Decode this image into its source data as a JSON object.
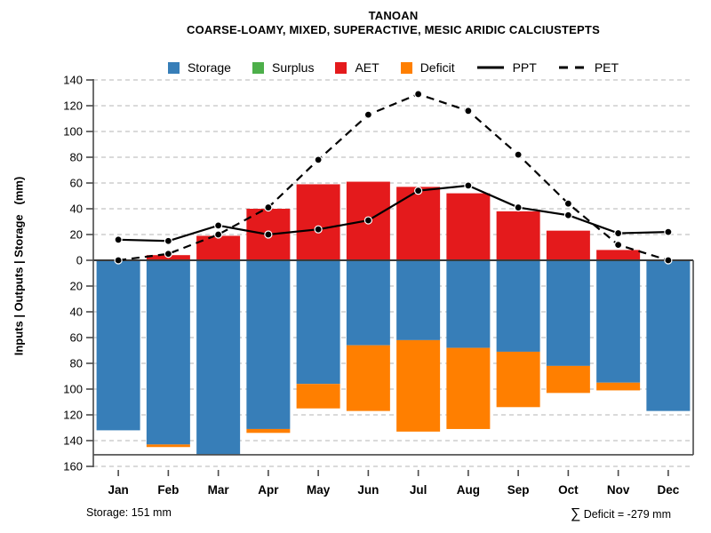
{
  "chart_data": {
    "type": "bar",
    "title": "TANOAN",
    "subtitle": "COARSE-LOAMY, MIXED, SUPERACTIVE, MESIC ARIDIC CALCIUSTEPTS",
    "categories": [
      "Jan",
      "Feb",
      "Mar",
      "Apr",
      "May",
      "Jun",
      "Jul",
      "Aug",
      "Sep",
      "Oct",
      "Nov",
      "Dec"
    ],
    "ylabel": "Inputs | Outputs | Storage   (mm)",
    "axis": {
      "up_max": 140,
      "down_max": 160,
      "tick_step": 20,
      "frame_bottom_value": 151,
      "grid": true,
      "grid_style": "dashed"
    },
    "series": [
      {
        "name": "Storage",
        "kind": "bar",
        "direction": "down",
        "color": "#377EB8",
        "values": [
          132,
          143,
          151,
          131,
          96,
          66,
          62,
          68,
          71,
          82,
          95,
          117
        ]
      },
      {
        "name": "Surplus",
        "kind": "bar",
        "direction": "up",
        "color": "#4DAF4A",
        "values": [
          0,
          0,
          0,
          0,
          0,
          0,
          0,
          0,
          0,
          0,
          0,
          0
        ]
      },
      {
        "name": "AET",
        "kind": "bar",
        "direction": "up",
        "color": "#E41A1C",
        "values": [
          0,
          4,
          19,
          40,
          59,
          61,
          57,
          52,
          38,
          23,
          8,
          0
        ]
      },
      {
        "name": "Deficit",
        "kind": "bar",
        "direction": "down",
        "stacked_on": "Storage",
        "color": "#FF7F00",
        "values": [
          0,
          2,
          0,
          3,
          19,
          51,
          71,
          63,
          43,
          21,
          6,
          0
        ]
      },
      {
        "name": "PPT",
        "kind": "line",
        "line_style": "solid",
        "color": "#000000",
        "values": [
          16,
          15,
          27,
          20,
          24,
          31,
          54,
          58,
          41,
          35,
          21,
          22
        ]
      },
      {
        "name": "PET",
        "kind": "line",
        "line_style": "dashed",
        "color": "#000000",
        "values": [
          0,
          5,
          20,
          41,
          78,
          113,
          129,
          116,
          82,
          44,
          12,
          0
        ]
      }
    ],
    "legend_order": [
      "Storage",
      "Surplus",
      "AET",
      "Deficit",
      "PPT",
      "PET"
    ],
    "annotations": {
      "storage_note": "Storage: 151 mm",
      "deficit_note": "∑ Deficit = -279 mm"
    }
  }
}
